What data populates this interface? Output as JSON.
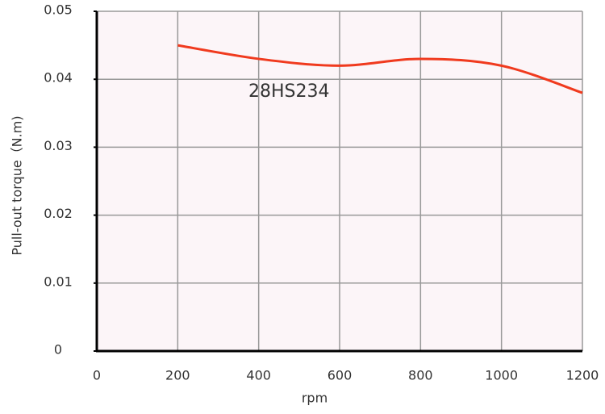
{
  "chart_data": {
    "type": "line",
    "x": [
      200,
      400,
      600,
      800,
      1000,
      1200
    ],
    "series": [
      {
        "name": "28HS234",
        "color": "#f03a1e",
        "values": [
          0.045,
          0.043,
          0.042,
          0.043,
          0.042,
          0.038
        ]
      }
    ],
    "xlabel": "rpm",
    "ylabel": "Pull-out torque（N.m)",
    "xlim": [
      0,
      1200
    ],
    "xticks": [
      0,
      200,
      400,
      600,
      800,
      1000,
      1200
    ],
    "ylim": [
      0,
      0.05
    ],
    "yticks": [
      0,
      0.01,
      0.02,
      0.03,
      0.04,
      0.05
    ],
    "grid": true
  }
}
